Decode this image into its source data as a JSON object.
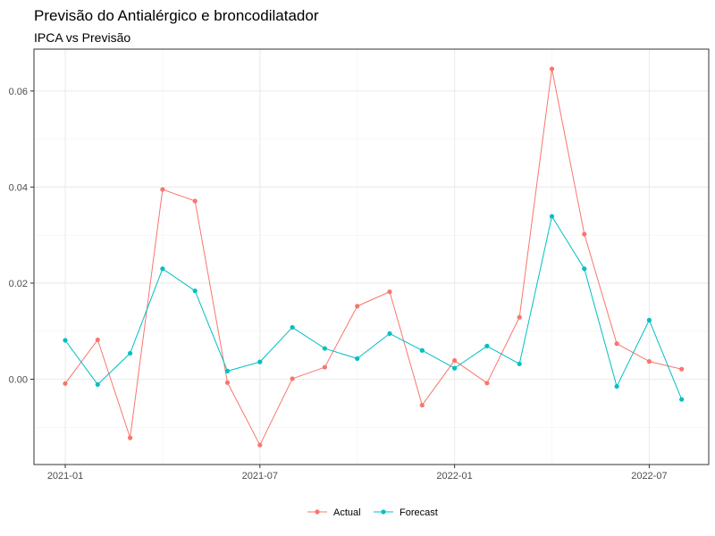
{
  "chart_data": {
    "type": "line",
    "title": "Previsão do Antialérgico e broncodilatador",
    "subtitle": "IPCA vs Previsão",
    "xlabel": "",
    "ylabel": "",
    "x": [
      "2021-01",
      "2021-02",
      "2021-03",
      "2021-04",
      "2021-05",
      "2021-06",
      "2021-07",
      "2021-08",
      "2021-09",
      "2021-10",
      "2021-11",
      "2021-12",
      "2022-01",
      "2022-02",
      "2022-03",
      "2022-04",
      "2022-05",
      "2022-06",
      "2022-07",
      "2022-08"
    ],
    "x_ticks": [
      "2021-01",
      "2021-07",
      "2022-01",
      "2022-07"
    ],
    "y_ticks": [
      0.0,
      0.02,
      0.04,
      0.06
    ],
    "y_tick_labels": [
      "0.00",
      "0.02",
      "0.04",
      "0.06"
    ],
    "ylim": [
      -0.0175,
      0.0685
    ],
    "grid": true,
    "legend_position": "bottom",
    "series": [
      {
        "name": "Actual",
        "color": "#F8766D",
        "values": [
          -0.0009,
          0.0082,
          -0.0122,
          0.0395,
          0.0371,
          -0.0007,
          -0.0137,
          0.0001,
          0.0025,
          0.0152,
          0.0182,
          -0.0054,
          0.0039,
          -0.0008,
          0.0129,
          0.0646,
          0.0302,
          0.0074,
          0.0037,
          0.0021
        ]
      },
      {
        "name": "Forecast",
        "color": "#00BFC4",
        "values": [
          0.0081,
          -0.0011,
          0.0054,
          0.023,
          0.0184,
          0.0017,
          0.0036,
          0.0108,
          0.0064,
          0.0043,
          0.0095,
          0.006,
          0.0023,
          0.0069,
          0.0032,
          0.0339,
          0.023,
          -0.0015,
          0.0123,
          -0.0042
        ]
      }
    ]
  }
}
